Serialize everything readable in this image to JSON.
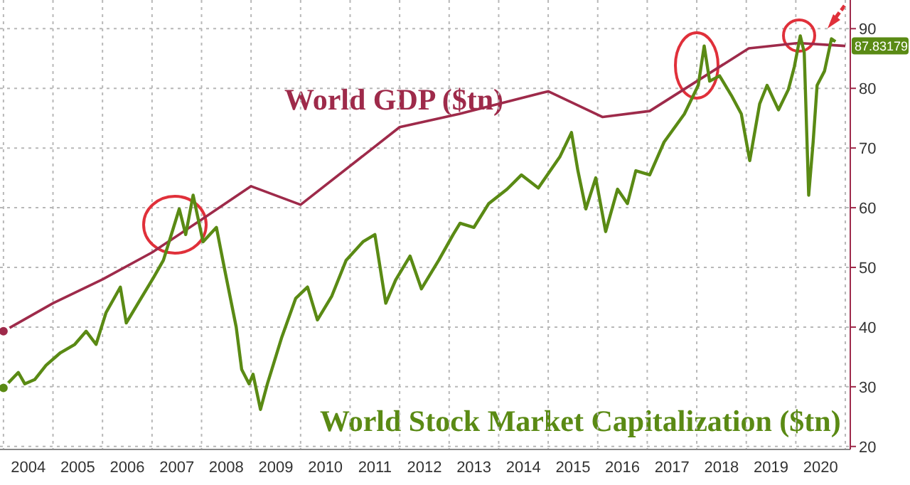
{
  "chart_data": {
    "type": "line",
    "xlim": [
      2003.93,
      2021.1
    ],
    "xticks": [
      {
        "value": 2004,
        "label": null
      },
      {
        "value": 2004.5,
        "label": "2004"
      },
      {
        "value": 2005,
        "label": null
      },
      {
        "value": 2005.5,
        "label": "2005"
      },
      {
        "value": 2006,
        "label": null
      },
      {
        "value": 2006.5,
        "label": "2006"
      },
      {
        "value": 2007,
        "label": null
      },
      {
        "value": 2007.5,
        "label": "2007"
      },
      {
        "value": 2008,
        "label": null
      },
      {
        "value": 2008.5,
        "label": "2008"
      },
      {
        "value": 2009,
        "label": null
      },
      {
        "value": 2009.5,
        "label": "2009"
      },
      {
        "value": 2010,
        "label": null
      },
      {
        "value": 2010.5,
        "label": "2010"
      },
      {
        "value": 2011,
        "label": null
      },
      {
        "value": 2011.5,
        "label": "2011"
      },
      {
        "value": 2012,
        "label": null
      },
      {
        "value": 2012.5,
        "label": "2012"
      },
      {
        "value": 2013,
        "label": null
      },
      {
        "value": 2013.5,
        "label": "2013"
      },
      {
        "value": 2014,
        "label": null
      },
      {
        "value": 2014.5,
        "label": "2014"
      },
      {
        "value": 2015,
        "label": null
      },
      {
        "value": 2015.5,
        "label": "2015"
      },
      {
        "value": 2016,
        "label": null
      },
      {
        "value": 2016.5,
        "label": "2016"
      },
      {
        "value": 2017,
        "label": null
      },
      {
        "value": 2017.5,
        "label": "2017"
      },
      {
        "value": 2018,
        "label": null
      },
      {
        "value": 2018.5,
        "label": "2018"
      },
      {
        "value": 2019,
        "label": null
      },
      {
        "value": 2019.5,
        "label": "2019"
      },
      {
        "value": 2020,
        "label": null
      },
      {
        "value": 2020.5,
        "label": "2020"
      },
      {
        "value": 2021,
        "label": null
      }
    ],
    "ylim": [
      19.5,
      94.8
    ],
    "yticks": [
      20,
      30,
      40,
      50,
      60,
      70,
      80,
      90
    ],
    "grid": true,
    "legend": false,
    "series": [
      {
        "name": "World GDP ($tn)",
        "color": "#9e2a4a",
        "x": [
          2004,
          2005,
          2006,
          2007,
          2008,
          2009,
          2010,
          2012,
          2013.2,
          2015,
          2016.1,
          2017.05,
          2019.05,
          2020.05,
          2021
        ],
        "values": [
          39.3,
          44,
          48,
          52.5,
          58,
          63.6,
          60.5,
          73.5,
          75.7,
          79.5,
          75.2,
          76.2,
          86.7,
          87.6,
          87.1
        ]
      },
      {
        "name": "World Stock Market Capitalization ($tn)",
        "color": "#5a8a14",
        "x": [
          2004,
          2004.3,
          2004.43,
          2004.63,
          2004.86,
          2005.15,
          2005.44,
          2005.67,
          2005.87,
          2006.07,
          2006.36,
          2006.48,
          2006.74,
          2007.03,
          2007.23,
          2007.55,
          2007.68,
          2007.83,
          2008.03,
          2008.3,
          2008.47,
          2008.7,
          2008.81,
          2008.96,
          2009.04,
          2009.19,
          2009.33,
          2009.62,
          2009.9,
          2010.14,
          2010.34,
          2010.63,
          2010.92,
          2011.26,
          2011.5,
          2011.72,
          2011.92,
          2012.21,
          2012.44,
          2012.79,
          2013.08,
          2013.22,
          2013.5,
          2013.8,
          2014.17,
          2014.46,
          2014.8,
          2015.24,
          2015.47,
          2015.6,
          2015.76,
          2015.96,
          2016.16,
          2016.4,
          2016.6,
          2016.77,
          2017.05,
          2017.34,
          2017.75,
          2018.03,
          2018.15,
          2018.26,
          2018.46,
          2018.7,
          2018.9,
          2019.07,
          2019.27,
          2019.42,
          2019.65,
          2019.85,
          2019.97,
          2020.09,
          2020.17,
          2020.26,
          2020.35,
          2020.43,
          2020.58,
          2020.72,
          2020.8
        ],
        "values": [
          29.8,
          32.4,
          30.5,
          31.2,
          33.6,
          35.7,
          37.1,
          39.3,
          37.1,
          42.4,
          46.7,
          40.7,
          44.3,
          48.3,
          51.2,
          59.8,
          55.5,
          62.1,
          54.3,
          56.7,
          49.5,
          40,
          32.9,
          30.5,
          32.1,
          26.2,
          30.5,
          38.3,
          44.8,
          46.7,
          41.2,
          45.2,
          51.2,
          54.3,
          55.5,
          44,
          47.9,
          51.9,
          46.4,
          51.2,
          55.5,
          57.4,
          56.7,
          60.7,
          63.1,
          65.5,
          63.3,
          68.6,
          72.6,
          66.2,
          59.8,
          65,
          56,
          63.1,
          60.7,
          66.2,
          65.5,
          71,
          75.7,
          80.5,
          87.1,
          81.2,
          82.1,
          78.8,
          75.7,
          67.9,
          77.4,
          80.5,
          76.4,
          79.8,
          83.6,
          88.8,
          86,
          62.1,
          71,
          80.5,
          82.9,
          88.3,
          87.83179
        ],
        "value_labels": [
          null,
          null,
          null,
          null,
          null,
          null,
          null,
          null,
          null,
          null,
          null,
          null,
          null,
          null,
          null,
          null,
          null,
          null,
          null,
          null,
          null,
          null,
          null,
          null,
          null,
          null,
          null,
          null,
          null,
          null,
          null,
          null,
          null,
          null,
          null,
          null,
          null,
          null,
          null,
          null,
          null,
          null,
          null,
          null,
          null,
          null,
          null,
          null,
          null,
          null,
          null,
          null,
          null,
          null,
          null,
          null,
          null,
          null,
          null,
          null,
          null,
          null,
          null,
          null,
          null,
          null,
          null,
          null,
          null,
          null,
          null,
          null,
          null,
          null,
          null,
          null,
          null,
          null,
          "87.83179"
        ]
      }
    ]
  }
}
